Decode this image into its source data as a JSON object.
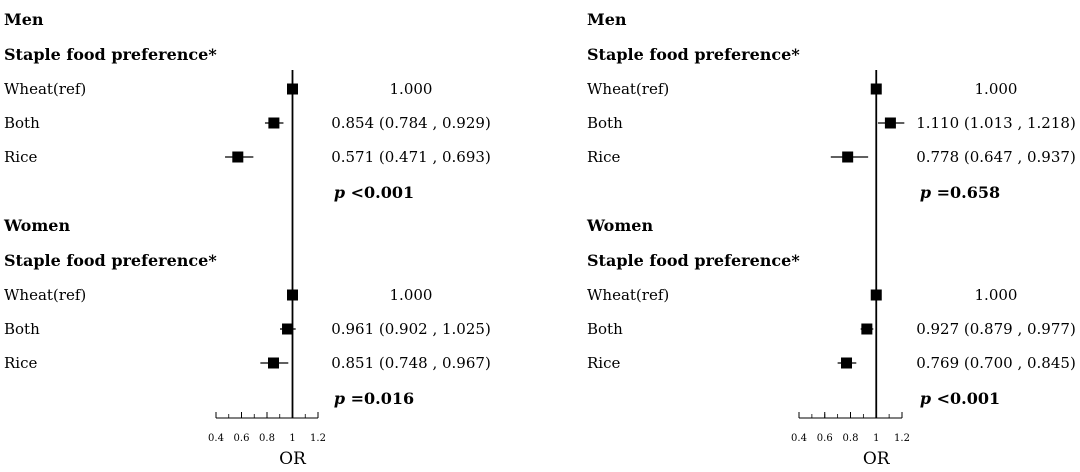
{
  "chart_data": [
    {
      "type": "forest",
      "xlabel": "OR",
      "xticks": [
        0.4,
        0.6,
        0.8,
        1,
        1.2
      ],
      "xticks_labels": [
        "0.4",
        "0.6",
        "0.8",
        "1",
        "1.2"
      ],
      "xlim": [
        0.4,
        1.2
      ],
      "reference_line": 1,
      "groups": [
        {
          "sex": "Men",
          "header": "Staple food preference*",
          "p_value_prefix": "p",
          "p_value_text": "<0.001",
          "rows": [
            {
              "label": "Wheat(ref)",
              "or": 1.0,
              "lower": 1.0,
              "upper": 1.0,
              "text": "1.000"
            },
            {
              "label": "Both",
              "or": 0.854,
              "lower": 0.784,
              "upper": 0.929,
              "text": "0.854 (0.784 , 0.929)"
            },
            {
              "label": "Rice",
              "or": 0.571,
              "lower": 0.471,
              "upper": 0.693,
              "text": "0.571 (0.471 , 0.693)"
            }
          ]
        },
        {
          "sex": "Women",
          "header": "Staple food preference*",
          "p_value_prefix": "p",
          "p_value_text": "=0.016",
          "rows": [
            {
              "label": "Wheat(ref)",
              "or": 1.0,
              "lower": 1.0,
              "upper": 1.0,
              "text": "1.000"
            },
            {
              "label": "Both",
              "or": 0.961,
              "lower": 0.902,
              "upper": 1.025,
              "text": "0.961 (0.902 , 1.025)"
            },
            {
              "label": "Rice",
              "or": 0.851,
              "lower": 0.748,
              "upper": 0.967,
              "text": "0.851 (0.748 , 0.967)"
            }
          ]
        }
      ]
    },
    {
      "type": "forest",
      "xlabel": "OR",
      "xticks": [
        0.4,
        0.6,
        0.8,
        1,
        1.2
      ],
      "xticks_labels": [
        "0.4",
        "0.6",
        "0.8",
        "1",
        "1.2"
      ],
      "xlim": [
        0.4,
        1.2
      ],
      "reference_line": 1,
      "groups": [
        {
          "sex": "Men",
          "header": "Staple food preference*",
          "p_value_prefix": "p",
          "p_value_text": "=0.658",
          "rows": [
            {
              "label": "Wheat(ref)",
              "or": 1.0,
              "lower": 1.0,
              "upper": 1.0,
              "text": "1.000"
            },
            {
              "label": "Both",
              "or": 1.11,
              "lower": 1.013,
              "upper": 1.218,
              "text": "1.110 (1.013 , 1.218)"
            },
            {
              "label": "Rice",
              "or": 0.778,
              "lower": 0.647,
              "upper": 0.937,
              "text": "0.778 (0.647 , 0.937)"
            }
          ]
        },
        {
          "sex": "Women",
          "header": "Staple food preference*",
          "p_value_prefix": "p",
          "p_value_text": "<0.001",
          "rows": [
            {
              "label": "Wheat(ref)",
              "or": 1.0,
              "lower": 1.0,
              "upper": 1.0,
              "text": "1.000"
            },
            {
              "label": "Both",
              "or": 0.927,
              "lower": 0.879,
              "upper": 0.977,
              "text": "0.927 (0.879 , 0.977)"
            },
            {
              "label": "Rice",
              "or": 0.769,
              "lower": 0.7,
              "upper": 0.845,
              "text": "0.769 (0.700 , 0.845)"
            }
          ]
        }
      ]
    }
  ]
}
